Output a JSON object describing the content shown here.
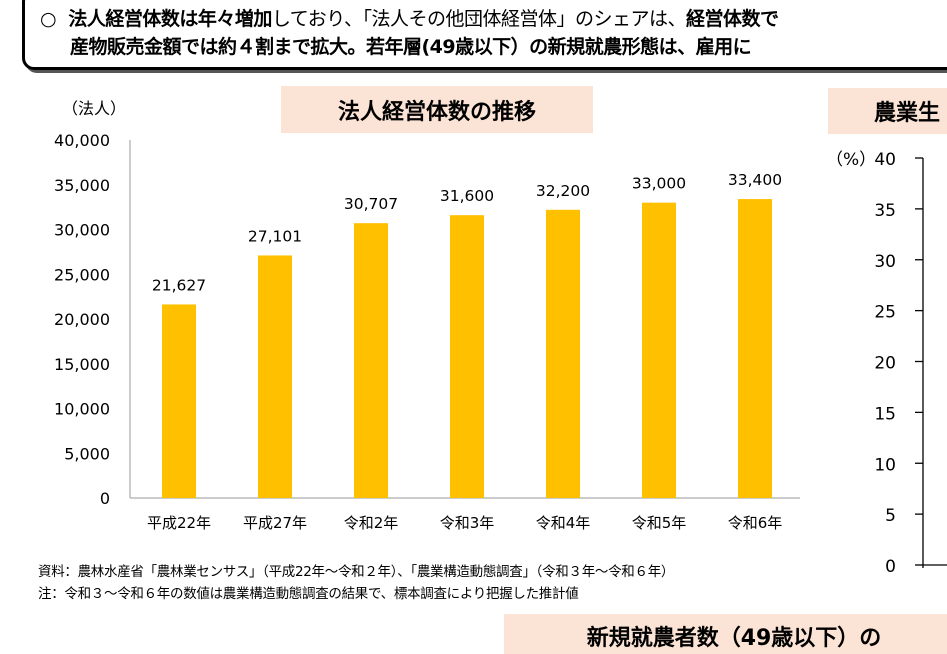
{
  "headline": {
    "bullet": "○",
    "line1_bold": "法人経営体数は年々増加",
    "line1_normal": "しており、「法人その他団体経営体」のシェアは、",
    "line1_bold2": "経営体数で",
    "line2": "産物販売金額では約４割まで拡大。若年層(49歳以下）の新規就農形態は、雇用に"
  },
  "chart_data": [
    {
      "type": "bar",
      "title": "法人経営体数の推移",
      "ylabel": "（法人）",
      "categories": [
        "平成22年",
        "平成27年",
        "令和2年",
        "令和3年",
        "令和4年",
        "令和5年",
        "令和6年"
      ],
      "values": [
        21627,
        27101,
        30707,
        31600,
        32200,
        33000,
        33400
      ],
      "data_labels": [
        "21,627",
        "27,101",
        "30,707",
        "31,600",
        "32,200",
        "33,000",
        "33,400"
      ],
      "ylim": [
        0,
        40000
      ],
      "yticks": [
        "0",
        "5,000",
        "10,000",
        "15,000",
        "20,000",
        "25,000",
        "30,000",
        "35,000",
        "40,000"
      ],
      "bar_color": "#ffc000",
      "grid": false
    },
    {
      "type": "bar",
      "title": "農業生",
      "ylabel": "（%）",
      "ylim": [
        0,
        40
      ],
      "yticks": [
        "0",
        "5",
        "10",
        "15",
        "20",
        "25",
        "30",
        "35",
        "40"
      ]
    }
  ],
  "notes": {
    "source": "資料：農林水産省「農林業センサス」（平成22年～令和２年）、「農業構造動態調査」（令和３年～令和６年）",
    "note": "注：令和３～令和６年の数値は農業構造動態調査の結果で、標本調査により把握した推計値"
  },
  "bottom_title": "新規就農者数（49歳以下）の"
}
